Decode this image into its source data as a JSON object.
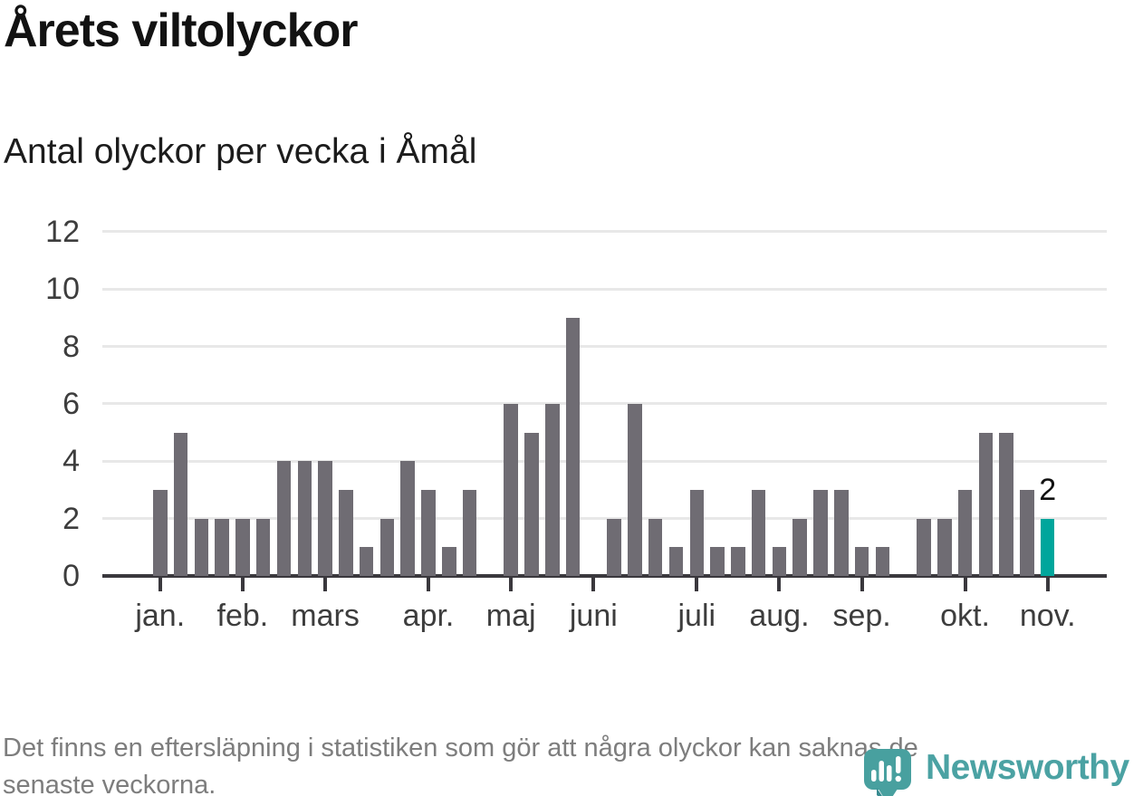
{
  "header": {
    "title": "Årets viltolyckor",
    "subtitle": "Antal olyckor per vecka i Åmål"
  },
  "chart_data": {
    "type": "bar",
    "title": "Årets viltolyckor",
    "subtitle": "Antal olyckor per vecka i Åmål",
    "x_unit": "vecka",
    "values": [
      3,
      5,
      2,
      2,
      2,
      2,
      4,
      4,
      4,
      3,
      1,
      2,
      4,
      3,
      1,
      3,
      0,
      6,
      5,
      6,
      9,
      0,
      2,
      6,
      2,
      1,
      3,
      1,
      1,
      3,
      1,
      2,
      3,
      3,
      1,
      1,
      0,
      2,
      2,
      3,
      5,
      5,
      3,
      2
    ],
    "month_ticks": [
      {
        "label": "jan.",
        "index": 0
      },
      {
        "label": "feb.",
        "index": 4
      },
      {
        "label": "mars",
        "index": 8
      },
      {
        "label": "apr.",
        "index": 13
      },
      {
        "label": "maj",
        "index": 17
      },
      {
        "label": "juni",
        "index": 21
      },
      {
        "label": "juli",
        "index": 26
      },
      {
        "label": "aug.",
        "index": 30
      },
      {
        "label": "sep.",
        "index": 34
      },
      {
        "label": "okt.",
        "index": 39
      },
      {
        "label": "nov.",
        "index": 43
      }
    ],
    "yticks": [
      0,
      2,
      4,
      6,
      8,
      10,
      12
    ],
    "ylim": [
      0,
      12
    ],
    "grid": true,
    "legend": false,
    "highlight_last_bar": true,
    "last_bar_label": "2",
    "colors": {
      "bar": "#6f6c73",
      "highlight": "#00a69c",
      "axis": "#3a383d",
      "grid": "#e8e8e8",
      "tick_label": "#3d3d3d"
    }
  },
  "footer": {
    "note_lines": [
      "Det finns en eftersläpning i statistiken som gör att några olyckor kan saknas de",
      "senaste veckorna."
    ],
    "brand": "Newsworthy",
    "brand_color": "#4ba2a3",
    "logo_icon": "speech-bubble-bar-chart-icon"
  }
}
